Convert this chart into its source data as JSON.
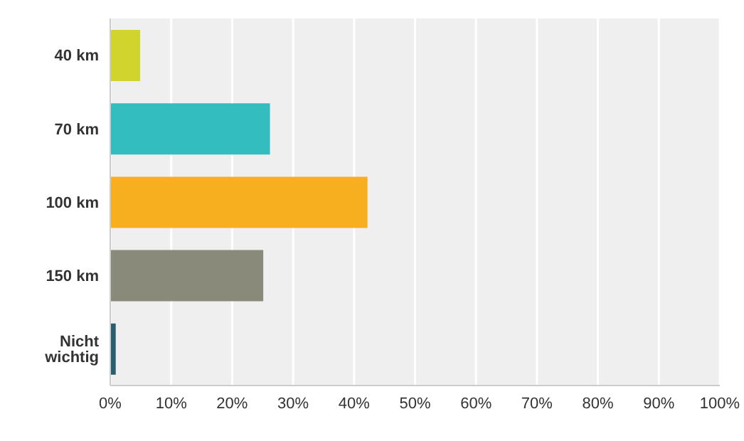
{
  "chart_data": {
    "type": "bar",
    "orientation": "horizontal",
    "categories": [
      "40 km",
      "70 km",
      "100 km",
      "150 km",
      "Nicht wichtig"
    ],
    "values": [
      4.9,
      26.2,
      42.2,
      25.1,
      0.9
    ],
    "colors": [
      "#d0d42c",
      "#33bdbf",
      "#f7ae1f",
      "#8a8a7a",
      "#2b5f6d"
    ],
    "xlim": [
      0,
      100
    ],
    "xticks": [
      {
        "value": 0,
        "label": "0%"
      },
      {
        "value": 10,
        "label": "10%"
      },
      {
        "value": 20,
        "label": "20%"
      },
      {
        "value": 30,
        "label": "30%"
      },
      {
        "value": 40,
        "label": "40%"
      },
      {
        "value": 50,
        "label": "50%"
      },
      {
        "value": 60,
        "label": "60%"
      },
      {
        "value": 70,
        "label": "70%"
      },
      {
        "value": 80,
        "label": "80%"
      },
      {
        "value": 90,
        "label": "90%"
      },
      {
        "value": 100,
        "label": "100%"
      }
    ],
    "grid": "x",
    "legend": false
  }
}
